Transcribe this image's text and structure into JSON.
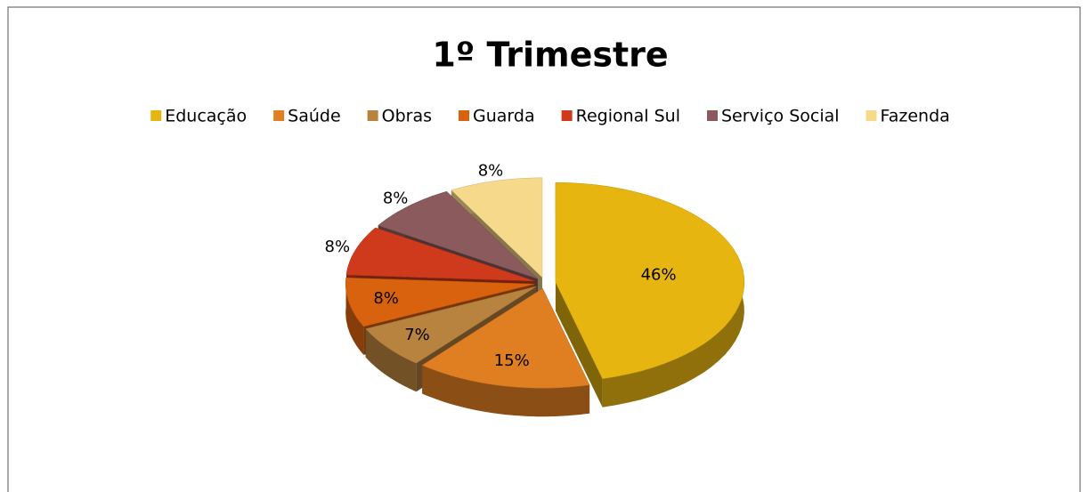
{
  "chart_data": {
    "type": "pie3d",
    "title": "1º Trimestre",
    "categories": [
      "Educação",
      "Saúde",
      "Obras",
      "Guarda",
      "Regional Sul",
      "Serviço Social",
      "Fazenda"
    ],
    "values": [
      46,
      15,
      7,
      8,
      8,
      8,
      8
    ],
    "value_labels": [
      "46%",
      "15%",
      "7%",
      "8%",
      "8%",
      "8%",
      "8%"
    ],
    "colors": [
      "#e6b510",
      "#e07e22",
      "#b8823f",
      "#d9620f",
      "#cf3a1c",
      "#8a5a5c",
      "#f7d98c"
    ],
    "legend": "top"
  }
}
